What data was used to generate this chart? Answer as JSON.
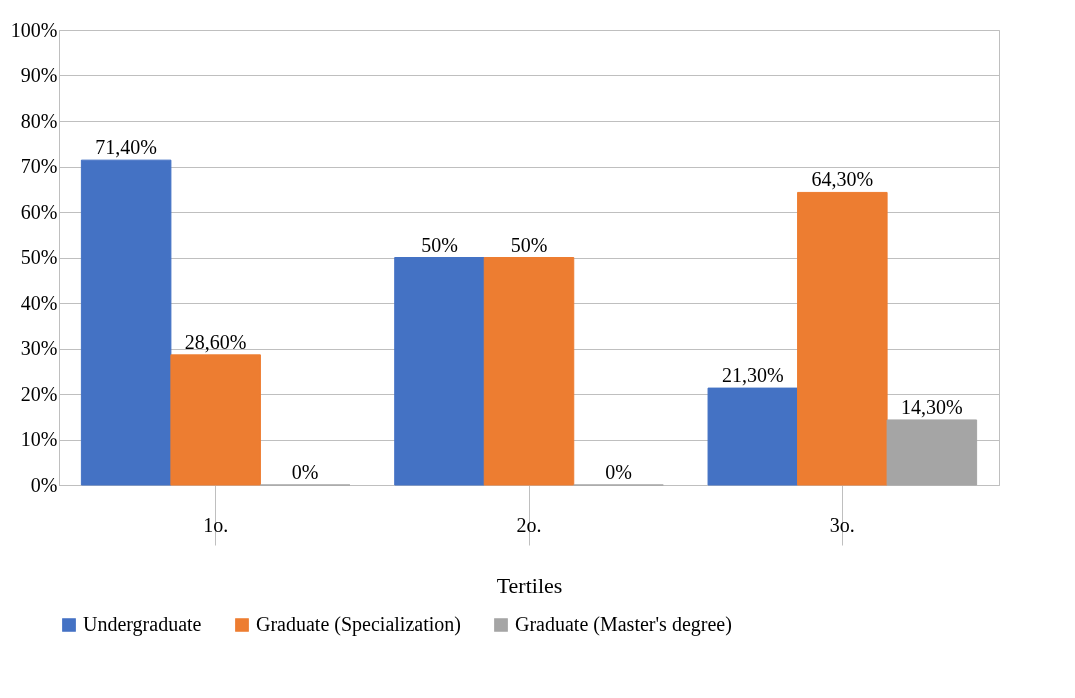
{
  "chart_data": {
    "type": "bar",
    "xlabel": "Tertiles",
    "categories": [
      "1o.",
      "2o.",
      "3o."
    ],
    "series": [
      {
        "name": "Undergraduate",
        "color": "#4472c4",
        "values": [
          71.4,
          50,
          21.3
        ],
        "value_labels": [
          "71,40%",
          "50%",
          "21,30%"
        ]
      },
      {
        "name": "Graduate (Specialization)",
        "color": "#ed7d31",
        "values": [
          28.6,
          50,
          64.3
        ],
        "value_labels": [
          "28,60%",
          "50%",
          "64,30%"
        ]
      },
      {
        "name": "Graduate (Master's degree)",
        "color": "#a5a5a5",
        "values": [
          0,
          0,
          14.3
        ],
        "value_labels": [
          "0%",
          "0%",
          "14,30%"
        ]
      }
    ],
    "ylim": [
      0,
      100
    ],
    "yticks": [
      {
        "value": 0,
        "label": "0%"
      },
      {
        "value": 10,
        "label": "10%"
      },
      {
        "value": 20,
        "label": "20%"
      },
      {
        "value": 30,
        "label": "30%"
      },
      {
        "value": 40,
        "label": "40%"
      },
      {
        "value": 50,
        "label": "50%"
      },
      {
        "value": 60,
        "label": "60%"
      },
      {
        "value": 70,
        "label": "70%"
      },
      {
        "value": 80,
        "label": "80%"
      },
      {
        "value": 90,
        "label": "90%"
      },
      {
        "value": 100,
        "label": "100%"
      }
    ],
    "grid": "y",
    "legend": "bottom"
  }
}
